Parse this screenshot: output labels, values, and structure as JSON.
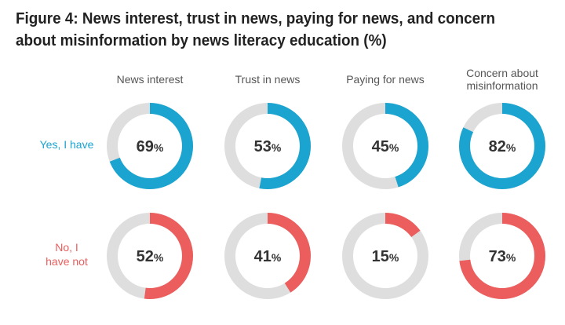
{
  "title": "Figure 4: News interest, trust in news, paying for news, and concern about misinformation by news literacy education (%)",
  "chart_data": {
    "type": "donut",
    "categories": [
      "News interest",
      "Trust in news",
      "Paying for news",
      "Concern about misinformation"
    ],
    "category_lines": [
      [
        "News interest"
      ],
      [
        "Trust in news"
      ],
      [
        "Paying for news"
      ],
      [
        "Concern about",
        "misinformation"
      ]
    ],
    "unit": "%",
    "series": [
      {
        "name": "Yes, I have",
        "name_lines": [
          "Yes, I have"
        ],
        "color": "#1aa4cf",
        "values": [
          69,
          53,
          45,
          82
        ]
      },
      {
        "name": "No, I have not",
        "name_lines": [
          "No, I",
          "have not"
        ],
        "color": "#ec5d5d",
        "values": [
          52,
          41,
          15,
          73
        ]
      }
    ],
    "track_color": "#dedede",
    "max": 100
  }
}
